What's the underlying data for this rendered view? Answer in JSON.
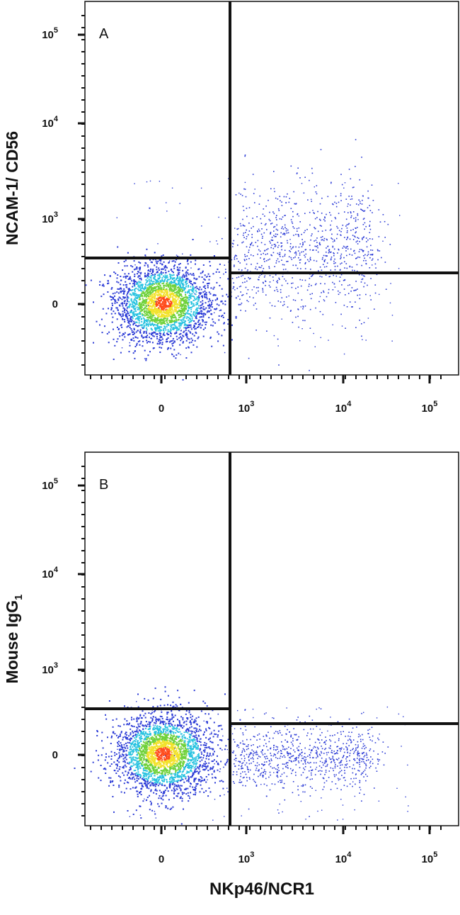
{
  "chart_data": [
    {
      "type": "scatter",
      "panel_label": "A",
      "ylabel": "NCAM-1/ CD56",
      "xlabel": "",
      "x_scale": "biexponential",
      "y_scale": "biexponential",
      "x_ticks": [
        {
          "value": "0"
        },
        {
          "value": "10",
          "exp": "3"
        },
        {
          "value": "10",
          "exp": "4"
        },
        {
          "value": "10",
          "exp": "5"
        }
      ],
      "y_ticks": [
        {
          "value": "0"
        },
        {
          "value": "10",
          "exp": "3"
        },
        {
          "value": "10",
          "exp": "4"
        },
        {
          "value": "10",
          "exp": "5"
        }
      ],
      "quadrant_gate": {
        "x_divider": 700,
        "y_divider_left": 350,
        "y_divider_right": 250
      },
      "populations": [
        {
          "name": "",
          "center_x": 50,
          "center_y": 20,
          "density": "high"
        },
        {
          "name": "",
          "center_x": 3000,
          "center_y": 450,
          "density": "low"
        }
      ]
    },
    {
      "type": "scatter",
      "panel_label": "B",
      "ylabel": "Mouse IgG",
      "ylabel_sub": "1",
      "xlabel": "NKp46/NCR1",
      "x_scale": "biexponential",
      "y_scale": "biexponential",
      "x_ticks": [
        {
          "value": "0"
        },
        {
          "value": "10",
          "exp": "3"
        },
        {
          "value": "10",
          "exp": "4"
        },
        {
          "value": "10",
          "exp": "5"
        }
      ],
      "y_ticks": [
        {
          "value": "0"
        },
        {
          "value": "10",
          "exp": "3"
        },
        {
          "value": "10",
          "exp": "4"
        },
        {
          "value": "10",
          "exp": "5"
        }
      ],
      "quadrant_gate": {
        "x_divider": 700,
        "y_divider_left": 350,
        "y_divider_right": 250
      },
      "populations": [
        {
          "name": "",
          "center_x": 50,
          "center_y": 20,
          "density": "high"
        },
        {
          "name": "",
          "center_x": 3000,
          "center_y": 20,
          "density": "low"
        }
      ]
    }
  ],
  "colors": {
    "low_density": "#2b3bd6",
    "mid_density": "#29c3e0",
    "mid_high_density": "#6fd13a",
    "high_density": "#f2e22a",
    "peak_density": "#ff4a1a",
    "axis": "#111111"
  }
}
